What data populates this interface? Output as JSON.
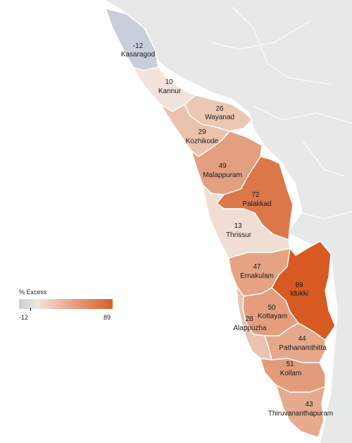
{
  "legend": {
    "title": "% Excess",
    "min_label": "-12",
    "max_label": "89",
    "min": -12,
    "max": 89
  },
  "colors": {
    "low": "#c9cfda",
    "neutral": "#f2e6df",
    "high": "#d65a22",
    "land": "#e7e9e9",
    "sea": "#ffffff",
    "border": "#ffffff"
  },
  "districts": [
    {
      "id": "kasaragod",
      "name": "Kasaragod",
      "value": -12,
      "value_label": "-12"
    },
    {
      "id": "kannur",
      "name": "Kannur",
      "value": 10,
      "value_label": "10"
    },
    {
      "id": "wayanad",
      "name": "Wayanad",
      "value": 26,
      "value_label": "26"
    },
    {
      "id": "kozhikode",
      "name": "Kozhikode",
      "value": 29,
      "value_label": "29"
    },
    {
      "id": "malappuram",
      "name": "Malappuram",
      "value": 49,
      "value_label": "49"
    },
    {
      "id": "palakkad",
      "name": "Palakkad",
      "value": 72,
      "value_label": "72"
    },
    {
      "id": "thrissur",
      "name": "Thrissur",
      "value": 13,
      "value_label": "13"
    },
    {
      "id": "ernakulam",
      "name": "Ernakulam",
      "value": 47,
      "value_label": "47"
    },
    {
      "id": "idukki",
      "name": "Idukki",
      "value": 89,
      "value_label": "89"
    },
    {
      "id": "kottayam",
      "name": "Kottayam",
      "value": 50,
      "value_label": "50"
    },
    {
      "id": "alappuzha",
      "name": "Alappuzha",
      "value": 28,
      "value_label": "28"
    },
    {
      "id": "pathanamthitta",
      "name": "Pathanamthitta",
      "value": 44,
      "value_label": "44"
    },
    {
      "id": "kollam",
      "name": "Kollam",
      "value": 51,
      "value_label": "51"
    },
    {
      "id": "thiruvananthapuram",
      "name": "Thiruvananthapuram",
      "value": 43,
      "value_label": "43"
    }
  ]
}
